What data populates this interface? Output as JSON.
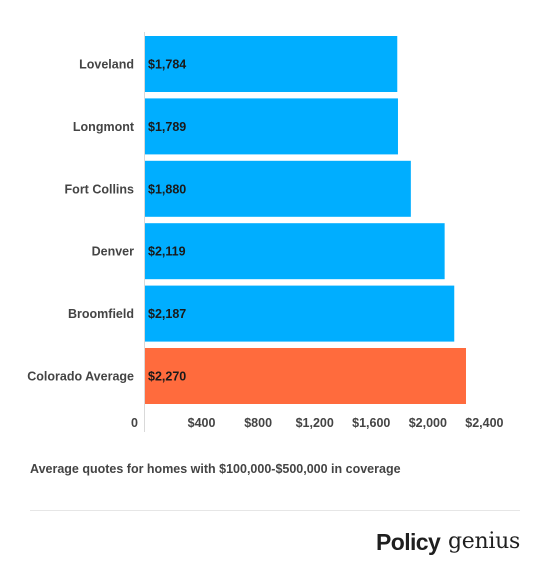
{
  "chart_data": {
    "type": "bar",
    "orientation": "horizontal",
    "categories": [
      "Loveland",
      "Longmont",
      "Fort Collins",
      "Denver",
      "Broomfield",
      "Colorado Average"
    ],
    "values": [
      1784,
      1789,
      1880,
      2119,
      2187,
      2270
    ],
    "data_labels": [
      "$1,784",
      "$1,789",
      "$1,880",
      "$2,119",
      "$2,187",
      "$2,270"
    ],
    "x_ticks": [
      0,
      400,
      800,
      1200,
      1600,
      2000,
      2400
    ],
    "x_tick_labels": [
      "0",
      "$400",
      "$800",
      "$1,200",
      "$1,600",
      "$2,000",
      "$2,400"
    ],
    "xlim": [
      0,
      2560
    ],
    "grid": false,
    "legend": "none",
    "colors": {
      "bar": "#00aeff",
      "highlight": "#ff6b3d",
      "highlight_category": "Colorado Average"
    }
  },
  "caption": "Average quotes for homes with $100,000-$500,000 in coverage",
  "logo": {
    "bold": "Policy",
    "light": "genius"
  }
}
